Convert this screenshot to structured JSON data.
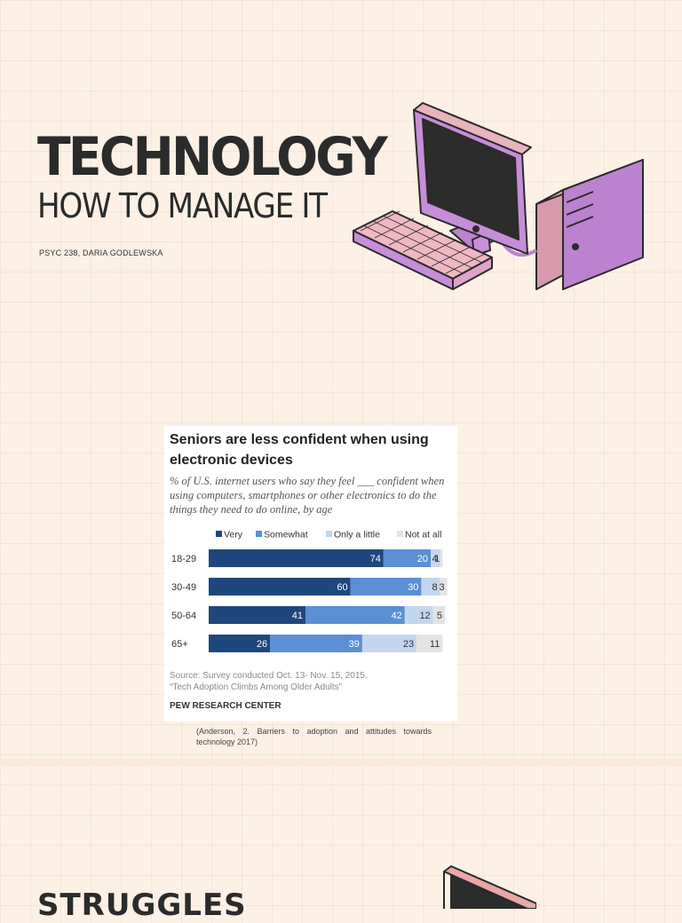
{
  "slide1": {
    "title": "TECHNOLOGY",
    "subtitle": "HOW TO MANAGE IT",
    "author": "PSYC 238, DARIA GODLEWSKA"
  },
  "slide2": {
    "source_line1": "Source: Survey conducted Oct. 13- Nov. 15, 2015.",
    "source_line2": "“Tech Adoption Climbs Among Older Adults”",
    "brand": "PEW RESEARCH CENTER",
    "citation": "(Anderson, 2. Barriers to adoption and attitudes towards technology 2017)"
  },
  "slide3": {
    "title_partial": "STRUGGLES"
  },
  "colors": {
    "very": "#1f477d",
    "somewhat": "#5a8fd4",
    "only_a_little": "#c3d6ee",
    "not_at_all": "#e4e4e4"
  },
  "chart_data": {
    "type": "bar",
    "orientation": "horizontal",
    "stacked": true,
    "title": "Seniors are less confident when using electronic devices",
    "subtitle": "% of U.S. internet users who say they feel ___ confident when using computers, smartphones or other electronics to do the things they need to do online, by age",
    "categories": [
      "18-29",
      "30-49",
      "50-64",
      "65+"
    ],
    "series": [
      {
        "name": "Very",
        "values": [
          74,
          60,
          41,
          26
        ]
      },
      {
        "name": "Somewhat",
        "values": [
          20,
          30,
          42,
          39
        ]
      },
      {
        "name": "Only a little",
        "values": [
          4,
          8,
          12,
          23
        ]
      },
      {
        "name": "Not at all",
        "values": [
          1,
          3,
          5,
          11
        ]
      }
    ],
    "legend": "top-right",
    "xlim": [
      0,
      100
    ]
  }
}
